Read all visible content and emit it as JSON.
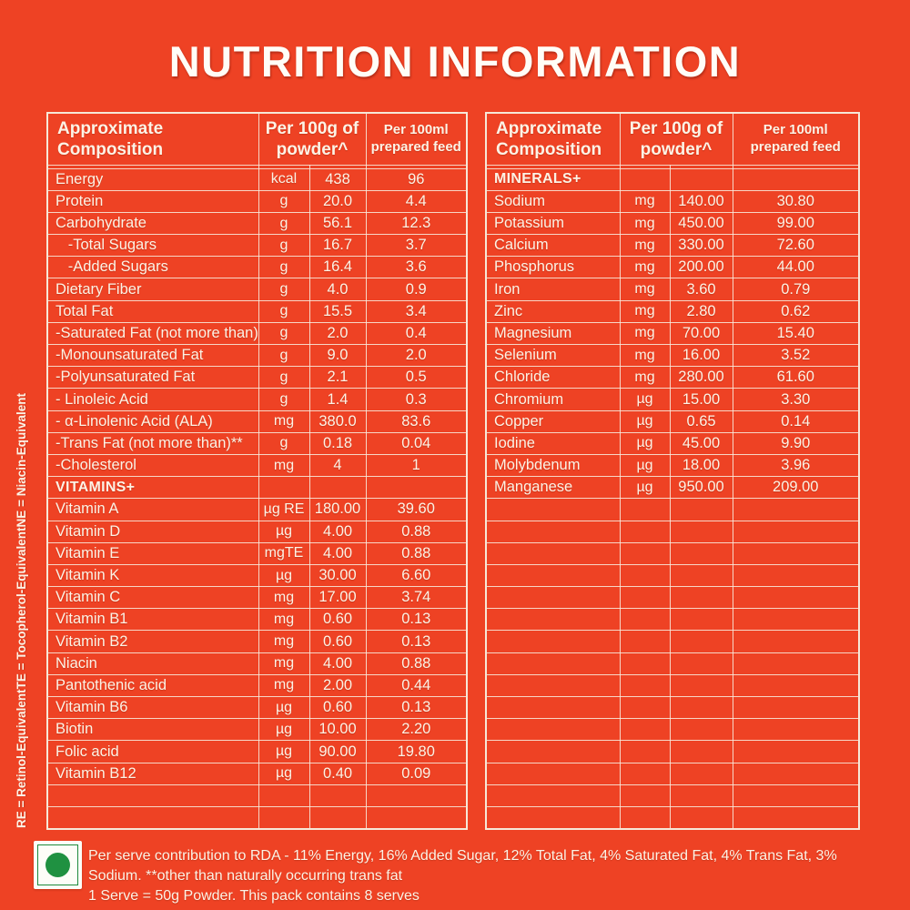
{
  "page": {
    "title": "NUTRITION INFORMATION"
  },
  "colors": {
    "background": "#EE4224",
    "table_line": "#F6E8D8",
    "text": "#FCF3E6",
    "veg_green": "#1F9141"
  },
  "header": {
    "col_composition": "Approximate\nComposition",
    "col_per100g": "Per 100g of\npowder^",
    "col_per100ml": "Per 100ml\nprepared feed"
  },
  "left_table": {
    "rows": [
      {
        "label": "Energy",
        "unit": "kcal",
        "per100g": "438",
        "per100ml": "96"
      },
      {
        "label": "Protein",
        "unit": "g",
        "per100g": "20.0",
        "per100ml": "4.4"
      },
      {
        "label": "Carbohydrate",
        "unit": "g",
        "per100g": "56.1",
        "per100ml": "12.3"
      },
      {
        "label": "   -Total Sugars",
        "unit": "g",
        "per100g": "16.7",
        "per100ml": "3.7"
      },
      {
        "label": "   -Added Sugars",
        "unit": "g",
        "per100g": "16.4",
        "per100ml": "3.6"
      },
      {
        "label": "Dietary Fiber",
        "unit": "g",
        "per100g": "4.0",
        "per100ml": "0.9"
      },
      {
        "label": "Total Fat",
        "unit": "g",
        "per100g": "15.5",
        "per100ml": "3.4"
      },
      {
        "label": "-Saturated Fat (not more than)",
        "unit": "g",
        "per100g": "2.0",
        "per100ml": "0.4"
      },
      {
        "label": "-Monounsaturated Fat",
        "unit": "g",
        "per100g": "9.0",
        "per100ml": "2.0"
      },
      {
        "label": "-Polyunsaturated Fat",
        "unit": "g",
        "per100g": "2.1",
        "per100ml": "0.5"
      },
      {
        "label": "- Linoleic Acid",
        "unit": "g",
        "per100g": "1.4",
        "per100ml": "0.3"
      },
      {
        "label": "- α-Linolenic Acid (ALA)",
        "unit": "mg",
        "per100g": "380.0",
        "per100ml": "83.6"
      },
      {
        "label": "-Trans Fat (not more than)**",
        "unit": "g",
        "per100g": "0.18",
        "per100ml": "0.04"
      },
      {
        "label": "-Cholesterol",
        "unit": "mg",
        "per100g": "4",
        "per100ml": "1"
      },
      {
        "label": "VITAMINS+",
        "section": true,
        "unit": "",
        "per100g": "",
        "per100ml": ""
      },
      {
        "label": "Vitamin A",
        "unit": "µg RE",
        "per100g": "180.00",
        "per100ml": "39.60"
      },
      {
        "label": "Vitamin D",
        "unit": "µg",
        "per100g": "4.00",
        "per100ml": "0.88"
      },
      {
        "label": "Vitamin E",
        "unit": "mgTE",
        "per100g": "4.00",
        "per100ml": "0.88"
      },
      {
        "label": "Vitamin K",
        "unit": "µg",
        "per100g": "30.00",
        "per100ml": "6.60"
      },
      {
        "label": "Vitamin C",
        "unit": "mg",
        "per100g": "17.00",
        "per100ml": "3.74"
      },
      {
        "label": "Vitamin B1",
        "unit": "mg",
        "per100g": "0.60",
        "per100ml": "0.13"
      },
      {
        "label": "Vitamin B2",
        "unit": "mg",
        "per100g": "0.60",
        "per100ml": "0.13"
      },
      {
        "label": "Niacin",
        "unit": "mg",
        "per100g": "4.00",
        "per100ml": "0.88"
      },
      {
        "label": "Pantothenic acid",
        "unit": "mg",
        "per100g": "2.00",
        "per100ml": "0.44"
      },
      {
        "label": "Vitamin B6",
        "unit": "µg",
        "per100g": "0.60",
        "per100ml": "0.13"
      },
      {
        "label": "Biotin",
        "unit": "µg",
        "per100g": "10.00",
        "per100ml": "2.20"
      },
      {
        "label": "Folic acid",
        "unit": "µg",
        "per100g": "90.00",
        "per100ml": "19.80"
      },
      {
        "label": "Vitamin B12",
        "unit": "µg",
        "per100g": "0.40",
        "per100ml": "0.09"
      },
      {
        "label": "",
        "unit": "",
        "per100g": "",
        "per100ml": ""
      },
      {
        "label": "",
        "unit": "",
        "per100g": "",
        "per100ml": ""
      }
    ]
  },
  "right_table": {
    "rows": [
      {
        "label": "MINERALS+",
        "section": true,
        "unit": "",
        "per100g": "",
        "per100ml": ""
      },
      {
        "label": "Sodium",
        "unit": "mg",
        "per100g": "140.00",
        "per100ml": "30.80"
      },
      {
        "label": "Potassium",
        "unit": "mg",
        "per100g": "450.00",
        "per100ml": "99.00"
      },
      {
        "label": "Calcium",
        "unit": "mg",
        "per100g": "330.00",
        "per100ml": "72.60"
      },
      {
        "label": "Phosphorus",
        "unit": "mg",
        "per100g": "200.00",
        "per100ml": "44.00"
      },
      {
        "label": "Iron",
        "unit": "mg",
        "per100g": "3.60",
        "per100ml": "0.79"
      },
      {
        "label": "Zinc",
        "unit": "mg",
        "per100g": "2.80",
        "per100ml": "0.62"
      },
      {
        "label": "Magnesium",
        "unit": "mg",
        "per100g": "70.00",
        "per100ml": "15.40"
      },
      {
        "label": "Selenium",
        "unit": "mg",
        "per100g": "16.00",
        "per100ml": "3.52"
      },
      {
        "label": "Chloride",
        "unit": "mg",
        "per100g": "280.00",
        "per100ml": "61.60"
      },
      {
        "label": "Chromium",
        "unit": "µg",
        "per100g": "15.00",
        "per100ml": "3.30"
      },
      {
        "label": "Copper",
        "unit": "µg",
        "per100g": "0.65",
        "per100ml": "0.14"
      },
      {
        "label": "Iodine",
        "unit": "µg",
        "per100g": "45.00",
        "per100ml": "9.90"
      },
      {
        "label": "Molybdenum",
        "unit": "µg",
        "per100g": "18.00",
        "per100ml": "3.96"
      },
      {
        "label": "Manganese",
        "unit": "µg",
        "per100g": "950.00",
        "per100ml": "209.00"
      },
      {
        "label": "",
        "unit": "",
        "per100g": "",
        "per100ml": ""
      },
      {
        "label": "",
        "unit": "",
        "per100g": "",
        "per100ml": ""
      },
      {
        "label": "",
        "unit": "",
        "per100g": "",
        "per100ml": ""
      },
      {
        "label": "",
        "unit": "",
        "per100g": "",
        "per100ml": ""
      },
      {
        "label": "",
        "unit": "",
        "per100g": "",
        "per100ml": ""
      },
      {
        "label": "",
        "unit": "",
        "per100g": "",
        "per100ml": ""
      },
      {
        "label": "",
        "unit": "",
        "per100g": "",
        "per100ml": ""
      },
      {
        "label": "",
        "unit": "",
        "per100g": "",
        "per100ml": ""
      },
      {
        "label": "",
        "unit": "",
        "per100g": "",
        "per100ml": ""
      },
      {
        "label": "",
        "unit": "",
        "per100g": "",
        "per100ml": ""
      },
      {
        "label": "",
        "unit": "",
        "per100g": "",
        "per100ml": ""
      },
      {
        "label": "",
        "unit": "",
        "per100g": "",
        "per100ml": ""
      },
      {
        "label": "",
        "unit": "",
        "per100g": "",
        "per100ml": ""
      },
      {
        "label": "",
        "unit": "",
        "per100g": "",
        "per100ml": ""
      },
      {
        "label": "",
        "unit": "",
        "per100g": "",
        "per100ml": ""
      }
    ]
  },
  "side_note": {
    "re": "RE = Retinol-Equivalent",
    "te": "TE = Tocopherol-Equivalent",
    "ne": "NE = Niacin-Equivalent"
  },
  "footnote": {
    "line1": "Per serve contribution to RDA - 11% Energy, 16% Added Sugar, 12% Total Fat, 4% Saturated Fat, 4% Trans Fat, 3% Sodium. **other than naturally occurring trans fat",
    "line2": "1 Serve = 50g Powder. This pack contains 8 serves"
  }
}
